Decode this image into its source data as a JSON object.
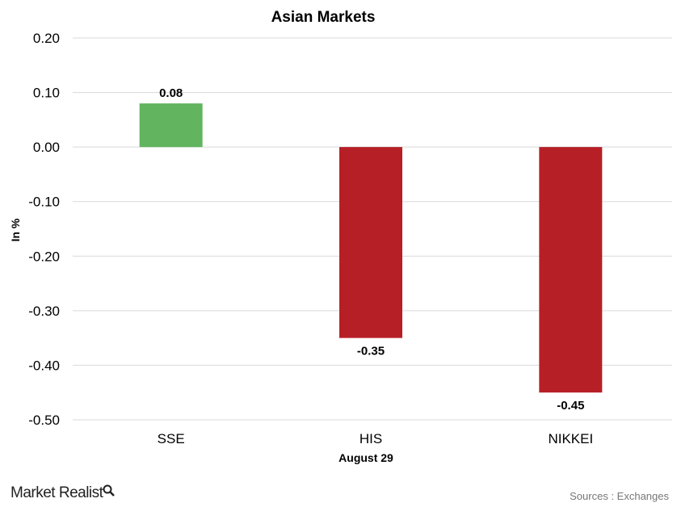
{
  "chart_data": {
    "type": "bar",
    "title": "Asian Markets",
    "xlabel": "August 29",
    "ylabel": "In %",
    "categories": [
      "SSE",
      "HIS",
      "NIKKEI"
    ],
    "values": [
      0.08,
      -0.35,
      -0.45
    ],
    "data_labels": [
      "0.08",
      "-0.35",
      "-0.45"
    ],
    "ylim": [
      -0.5,
      0.2
    ],
    "yticks": [
      0.2,
      0.1,
      0.0,
      -0.1,
      -0.2,
      -0.3,
      -0.4,
      -0.5
    ],
    "ytick_labels": [
      "0.20",
      "0.10",
      "0.00",
      "-0.10",
      "-0.20",
      "-0.30",
      "-0.40",
      "-0.50"
    ],
    "grid": true,
    "colors": {
      "positive": "#62b45f",
      "negative": "#b71f27"
    }
  },
  "footer": {
    "logo": "Market Realist",
    "source": "Sources : Exchanges"
  }
}
